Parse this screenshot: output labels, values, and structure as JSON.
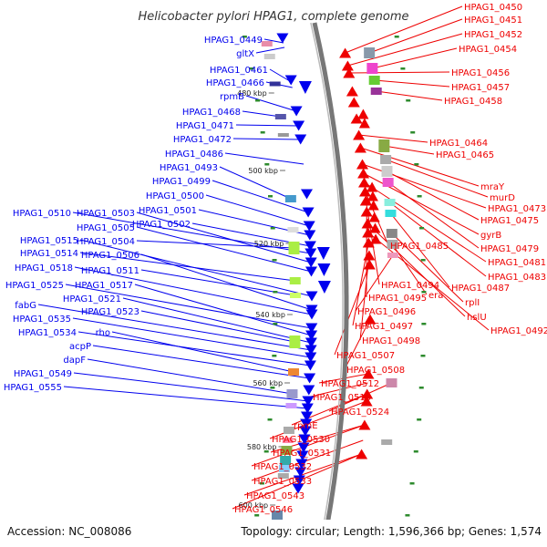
{
  "title": "Helicobacter pylori HPAG1, complete genome",
  "accession_text": "Accession: NC_008086",
  "summary_text": "Topology: circular; Length: 1,596,366 bp; Genes: 1,574",
  "scale_ticks": [
    "480 kbp",
    "500 kbp",
    "520 kbp",
    "540 kbp",
    "560 kbp",
    "580 kbp",
    "600 kbp"
  ],
  "colors": {
    "forward": "#0000ee",
    "reverse": "#ee0000",
    "backbone": "#777777",
    "tick_dot": "#2e8b2e"
  },
  "left_labels": [
    "HPAG1_0449",
    "gltX",
    "HPAG1_0461",
    "HPAG1_0466",
    "rpmB",
    "HPAG1_0468",
    "HPAG1_0471",
    "HPAG1_0472",
    "HPAG1_0486",
    "HPAG1_0493",
    "HPAG1_0499",
    "HPAG1_0500",
    "HPAG1_0501",
    "HPAG1_0502",
    "HPAG1_0510",
    "HPAG1_0503",
    "HPAG1_0505",
    "HPAG1_0504",
    "HPAG1_0515",
    "HPAG1_0514",
    "HPAG1_0506",
    "HPAG1_0518",
    "HPAG1_0511",
    "HPAG1_0525",
    "HPAG1_0517",
    "HPAG1_0521",
    "fabG",
    "HPAG1_0523",
    "HPAG1_0535",
    "HPAG1_0534",
    "rho",
    "acpP",
    "dapF",
    "HPAG1_0549",
    "HPAG1_0555"
  ],
  "right_labels": [
    "HPAG1_0450",
    "HPAG1_0451",
    "HPAG1_0452",
    "HPAG1_0454",
    "HPAG1_0456",
    "HPAG1_0457",
    "HPAG1_0458",
    "HPAG1_0464",
    "HPAG1_0465",
    "mraY",
    "murD",
    "HPAG1_0473",
    "HPAG1_0475",
    "gyrB",
    "HPAG1_0479",
    "HPAG1_0481",
    "HPAG1_0483",
    "HPAG1_0485",
    "HPAG1_0487",
    "HPAG1_0494",
    "rplI",
    "HPAG1_0495",
    "era",
    "hslU",
    "HPAG1_0496",
    "HPAG1_0492",
    "HPAG1_0497",
    "HPAG1_0498",
    "HPAG1_0507",
    "HPAG1_0508",
    "HPAG1_0512",
    "HPAG1_0513",
    "HPAG1_0524",
    "rpmE",
    "HPAG1_0530",
    "HPAG1_0531",
    "HPAG1_0532",
    "HPAG1_0533",
    "HPAG1_0543",
    "HPAG1_0546"
  ]
}
